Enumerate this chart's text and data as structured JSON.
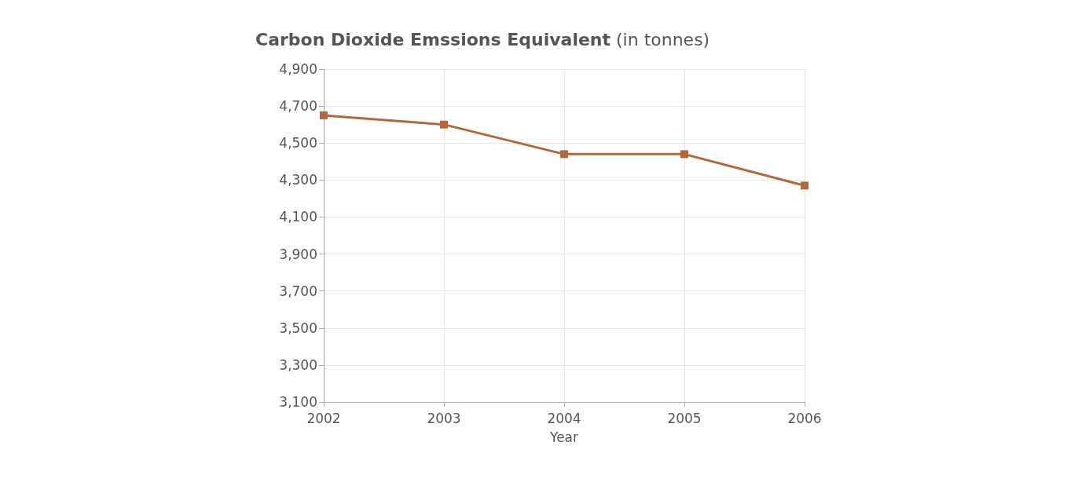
{
  "chart_data": {
    "type": "line",
    "title": "Carbon Dioxide Emssions Equivalent (in tonnes)",
    "xlabel": "Year",
    "x": [
      2002,
      2003,
      2004,
      2005,
      2006
    ],
    "series": [
      {
        "color": "#b5673a",
        "values": [
          4650,
          4600,
          4440,
          4440,
          4270
        ]
      }
    ],
    "xlim": [
      2002,
      2006
    ],
    "xticks": [
      2002,
      2003,
      2004,
      2005,
      2006
    ],
    "ylim": [
      3100,
      4900
    ],
    "yticks": [
      {
        "value": 3100,
        "label": "3,100"
      },
      {
        "value": 3300,
        "label": "3,300"
      },
      {
        "value": 3500,
        "label": "3,500"
      },
      {
        "value": 3700,
        "label": "3,700"
      },
      {
        "value": 3900,
        "label": "3,900"
      },
      {
        "value": 4100,
        "label": "4,100"
      },
      {
        "value": 4300,
        "label": "4,300"
      },
      {
        "value": 4500,
        "label": "4,500"
      },
      {
        "value": 4700,
        "label": "4,700"
      },
      {
        "value": 4900,
        "label": "4,900"
      }
    ],
    "grid": true,
    "marker": "square",
    "line_style": "solid"
  }
}
